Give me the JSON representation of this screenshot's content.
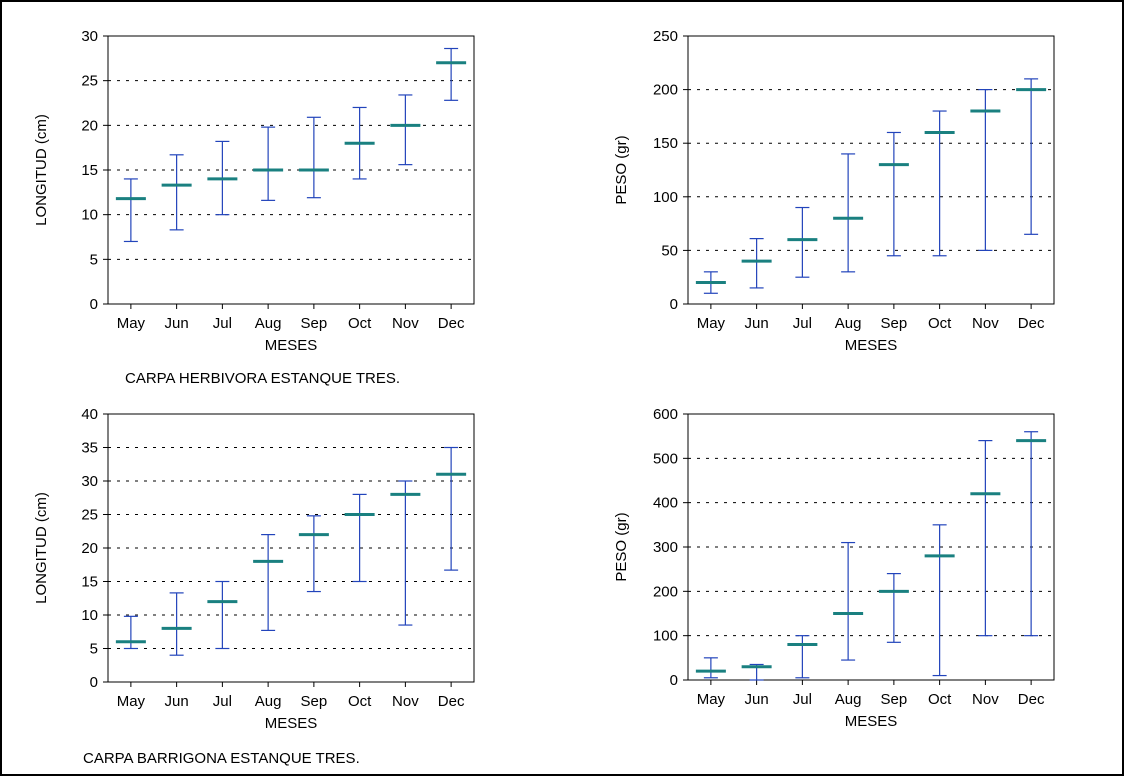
{
  "captions": {
    "herbivora": "CARPA HERBIVORA ESTANQUE TRES.",
    "barrigona": "CARPA BARRIGONA ESTANQUE TRES."
  },
  "colors": {
    "whisker": "#2244bb",
    "mean": "#1a8080",
    "grid": "#000000",
    "border": "#000000"
  },
  "chart_data": [
    {
      "id": "herbivora-longitud",
      "type": "errorbar",
      "title": "",
      "xlabel": "MESES",
      "ylabel": "LONGITUD (cm)",
      "categories": [
        "May",
        "Jun",
        "Jul",
        "Aug",
        "Sep",
        "Oct",
        "Nov",
        "Dec"
      ],
      "yticks": [
        "0",
        "5",
        "10",
        "15",
        "20",
        "25",
        "30"
      ],
      "ylim": [
        0,
        30
      ],
      "grid": "y-dotted",
      "mean": [
        11.8,
        13.3,
        14.0,
        15.0,
        15.0,
        18.0,
        20.0,
        27.0
      ],
      "lower": [
        7.0,
        8.3,
        10.0,
        11.6,
        11.9,
        14.0,
        15.6,
        22.8
      ],
      "upper": [
        14.0,
        16.7,
        18.2,
        19.8,
        20.9,
        22.0,
        23.4,
        28.6
      ]
    },
    {
      "id": "herbivora-peso",
      "type": "errorbar",
      "title": "",
      "xlabel": "MESES",
      "ylabel": "PESO (gr)",
      "categories": [
        "May",
        "Jun",
        "Jul",
        "Aug",
        "Sep",
        "Oct",
        "Nov",
        "Dec"
      ],
      "yticks": [
        "0",
        "50",
        "100",
        "150",
        "200",
        "250"
      ],
      "ylim": [
        0,
        250
      ],
      "grid": "y-dotted",
      "mean": [
        20,
        40,
        60,
        80,
        130,
        160,
        180,
        200
      ],
      "lower": [
        10,
        15,
        25,
        30,
        45,
        45,
        50,
        65
      ],
      "upper": [
        30,
        61,
        90,
        140,
        160,
        180,
        200,
        210
      ]
    },
    {
      "id": "barrigona-longitud",
      "type": "errorbar",
      "title": "",
      "xlabel": "MESES",
      "ylabel": "LONGITUD (cm)",
      "categories": [
        "May",
        "Jun",
        "Jul",
        "Aug",
        "Sep",
        "Oct",
        "Nov",
        "Dec"
      ],
      "yticks": [
        "0",
        "5",
        "10",
        "15",
        "20",
        "25",
        "30",
        "35",
        "40"
      ],
      "ylim": [
        0,
        40
      ],
      "grid": "y-dotted",
      "mean": [
        6.0,
        8.0,
        12.0,
        18.0,
        22.0,
        25.0,
        28.0,
        31.0
      ],
      "lower": [
        5.0,
        4.0,
        5.0,
        7.7,
        13.5,
        15.0,
        8.5,
        16.7
      ],
      "upper": [
        9.8,
        13.3,
        15.0,
        22.0,
        24.8,
        28.0,
        30.0,
        35.0
      ]
    },
    {
      "id": "barrigona-peso",
      "type": "errorbar",
      "title": "",
      "xlabel": "MESES",
      "ylabel": "PESO (gr)",
      "categories": [
        "May",
        "Jun",
        "Jul",
        "Aug",
        "Sep",
        "Oct",
        "Nov",
        "Dec"
      ],
      "yticks": [
        "0",
        "100",
        "200",
        "300",
        "400",
        "500",
        "600"
      ],
      "ylim": [
        0,
        600
      ],
      "grid": "y-dotted",
      "mean": [
        20,
        30,
        80,
        150,
        200,
        280,
        420,
        540
      ],
      "lower": [
        5,
        0,
        5,
        45,
        85,
        10,
        100,
        100
      ],
      "upper": [
        50,
        35,
        100,
        310,
        240,
        350,
        540,
        560
      ]
    }
  ]
}
